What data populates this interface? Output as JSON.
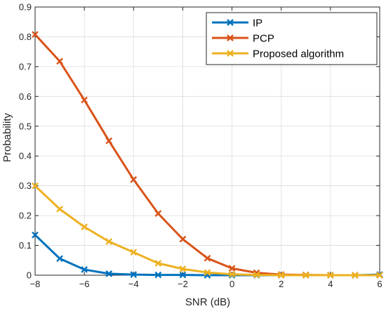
{
  "chart_data": {
    "type": "line",
    "xlabel": "SNR (dB)",
    "ylabel": "Probability",
    "xlim": [
      -8,
      6
    ],
    "ylim": [
      0,
      0.9
    ],
    "grid": true,
    "legend_position": "top-right",
    "x": [
      -8,
      -7,
      -6,
      -5,
      -4,
      -3,
      -2,
      -1,
      0,
      1,
      2,
      3,
      4,
      5,
      6
    ],
    "x_ticks": [
      "-8",
      "-6",
      "-4",
      "-2",
      "0",
      "2",
      "4",
      "6"
    ],
    "y_ticks": [
      "0",
      "0.1",
      "0.2",
      "0.3",
      "0.4",
      "0.5",
      "0.6",
      "0.7",
      "0.8",
      "0.9"
    ],
    "series": [
      {
        "name": "IP",
        "color": "#0072BD",
        "marker": "x",
        "values": [
          0.135,
          0.056,
          0.019,
          0.005,
          0.002,
          0.001,
          0.001,
          0.0,
          0.0,
          0.0,
          0.0,
          0.0,
          0.0,
          0.0,
          0.002
        ]
      },
      {
        "name": "PCP",
        "color": "#D95319",
        "marker": "x",
        "values": [
          0.808,
          0.718,
          0.588,
          0.451,
          0.321,
          0.207,
          0.121,
          0.057,
          0.023,
          0.008,
          0.002,
          0.001,
          0.0,
          0.0,
          0.0
        ]
      },
      {
        "name": "Proposed algorithm",
        "color": "#EDB120",
        "marker": "x",
        "values": [
          0.3,
          0.222,
          0.162,
          0.113,
          0.077,
          0.04,
          0.021,
          0.009,
          0.003,
          0.001,
          0.0,
          0.0,
          0.0,
          0.0,
          0.0
        ]
      }
    ]
  }
}
